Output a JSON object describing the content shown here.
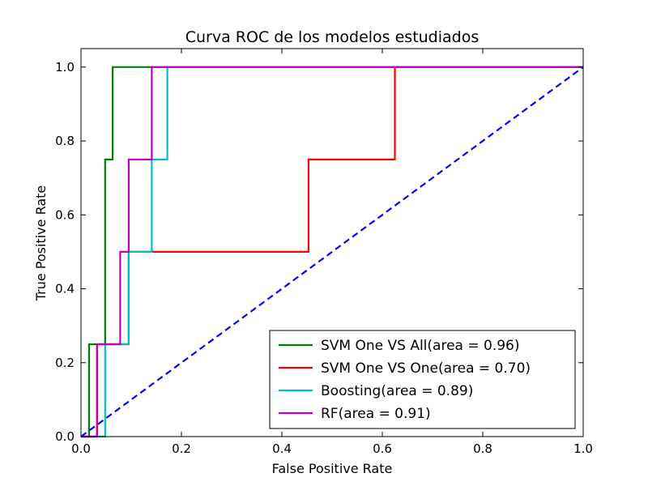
{
  "chart_data": {
    "type": "line",
    "title": "Curva ROC de los modelos estudiados",
    "xlabel": "False Positive Rate",
    "ylabel": "True Positive Rate",
    "xlim": [
      0.0,
      1.0
    ],
    "ylim": [
      0.0,
      1.05
    ],
    "xticks": [
      "0.0",
      "0.2",
      "0.4",
      "0.6",
      "0.8",
      "1.0"
    ],
    "yticks": [
      "0.0",
      "0.2",
      "0.4",
      "0.6",
      "0.8",
      "1.0"
    ],
    "grid": false,
    "legend_position": "bottom-right",
    "series": [
      {
        "name": "SVM One VS All(area = 0.96)",
        "color": "#008000",
        "x": [
          0.0,
          0.016,
          0.016,
          0.048,
          0.048,
          0.063,
          0.063,
          1.0
        ],
        "y": [
          0.0,
          0.0,
          0.25,
          0.25,
          0.75,
          0.75,
          1.0,
          1.0
        ]
      },
      {
        "name": "SVM One VS One(area = 0.70)",
        "color": "#ff0000",
        "x": [
          0.0,
          0.032,
          0.032,
          0.048,
          0.048,
          0.095,
          0.095,
          0.453,
          0.453,
          0.625,
          0.625,
          1.0
        ],
        "y": [
          0.0,
          0.0,
          0.25,
          0.25,
          0.25,
          0.25,
          0.5,
          0.5,
          0.75,
          0.75,
          1.0,
          1.0
        ]
      },
      {
        "name": "Boosting(area = 0.89)",
        "color": "#00bfbf",
        "x": [
          0.0,
          0.048,
          0.048,
          0.095,
          0.095,
          0.141,
          0.141,
          0.172,
          0.172,
          1.0
        ],
        "y": [
          0.0,
          0.0,
          0.25,
          0.25,
          0.5,
          0.5,
          0.75,
          0.75,
          1.0,
          1.0
        ]
      },
      {
        "name": "RF(area = 0.91)",
        "color": "#bf00bf",
        "x": [
          0.0,
          0.032,
          0.032,
          0.078,
          0.078,
          0.095,
          0.095,
          0.141,
          0.141,
          1.0
        ],
        "y": [
          0.0,
          0.0,
          0.25,
          0.25,
          0.5,
          0.5,
          0.75,
          0.75,
          1.0,
          1.0
        ]
      }
    ],
    "reference_line": {
      "color": "#0000ff",
      "style": "dashed",
      "x": [
        0.0,
        1.0
      ],
      "y": [
        0.0,
        1.0
      ]
    }
  }
}
